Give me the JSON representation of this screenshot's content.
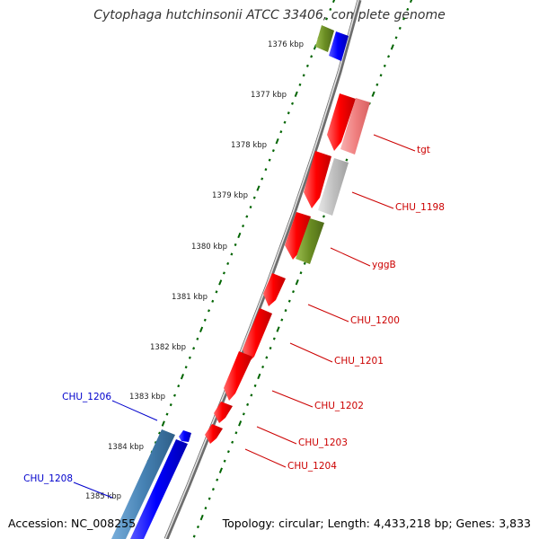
{
  "title": "Cytophaga hutchinsonii ATCC 33406, complete genome",
  "accession": "Accession: NC_008255",
  "summary": "Topology: circular; Length: 4,433,218 bp; Genes: 3,833",
  "ticks": [
    "1376 kbp",
    "1377 kbp",
    "1378 kbp",
    "1379 kbp",
    "1380 kbp",
    "1381 kbp",
    "1382 kbp",
    "1383 kbp",
    "1384 kbp",
    "1385 kbp"
  ],
  "features_right": [
    {
      "label": "tgt",
      "color": "#cc0000"
    },
    {
      "label": "CHU_1198",
      "color": "#cc0000"
    },
    {
      "label": "yggB",
      "color": "#cc0000"
    },
    {
      "label": "CHU_1200",
      "color": "#cc0000"
    },
    {
      "label": "CHU_1201",
      "color": "#cc0000"
    },
    {
      "label": "CHU_1202",
      "color": "#cc0000"
    },
    {
      "label": "CHU_1203",
      "color": "#cc0000"
    },
    {
      "label": "CHU_1204",
      "color": "#cc0000"
    }
  ],
  "features_left": [
    {
      "label": "CHU_1206",
      "color": "#0000cc"
    },
    {
      "label": "CHU_1208",
      "color": "#0000cc"
    }
  ],
  "colors": {
    "cds_red": "#ff0000",
    "cds_blue": "#0000ff",
    "olive": "#6b8e23",
    "steel": "#4682b4",
    "pink": "#f08080",
    "gray": "#c0c0c0",
    "tick": "#006400"
  }
}
